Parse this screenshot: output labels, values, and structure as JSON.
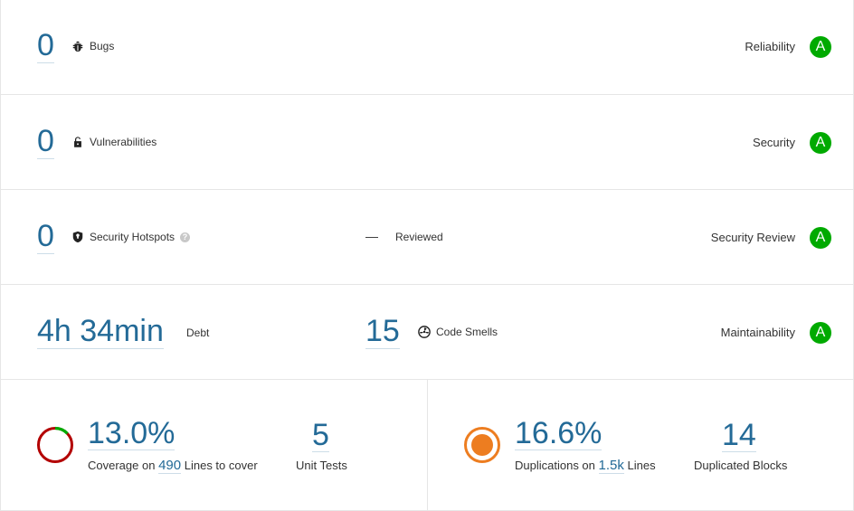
{
  "reliability": {
    "value": "0",
    "label": "Bugs",
    "rating_label": "Reliability",
    "rating": "A",
    "icon": "bug-icon"
  },
  "security": {
    "value": "0",
    "label": "Vulnerabilities",
    "rating_label": "Security",
    "rating": "A",
    "icon": "lock-icon"
  },
  "hotspots": {
    "value": "0",
    "label": "Security Hotspots",
    "help": "?",
    "reviewed_value": "—",
    "reviewed_label": "Reviewed",
    "rating_label": "Security Review",
    "rating": "A",
    "icon": "shield-icon"
  },
  "maintainability": {
    "debt_value": "4h 34min",
    "debt_label": "Debt",
    "smells_value": "15",
    "smells_label": "Code Smells",
    "rating_label": "Maintainability",
    "rating": "A",
    "icon": "code-smell-icon"
  },
  "coverage": {
    "percent": "13.0%",
    "prefix": "Coverage on",
    "lines_value": "490",
    "suffix": "Lines to cover",
    "tests_value": "5",
    "tests_label": "Unit Tests",
    "fraction": 0.13
  },
  "duplications": {
    "percent": "16.6%",
    "prefix": "Duplications on",
    "lines_value": "1.5k",
    "suffix": "Lines",
    "blocks_value": "14",
    "blocks_label": "Duplicated Blocks"
  },
  "colors": {
    "link": "#236a97",
    "rating_a": "#00aa00",
    "coverage_good": "#00aa00",
    "coverage_bad": "#b30000",
    "duplication": "#ed7d20"
  }
}
